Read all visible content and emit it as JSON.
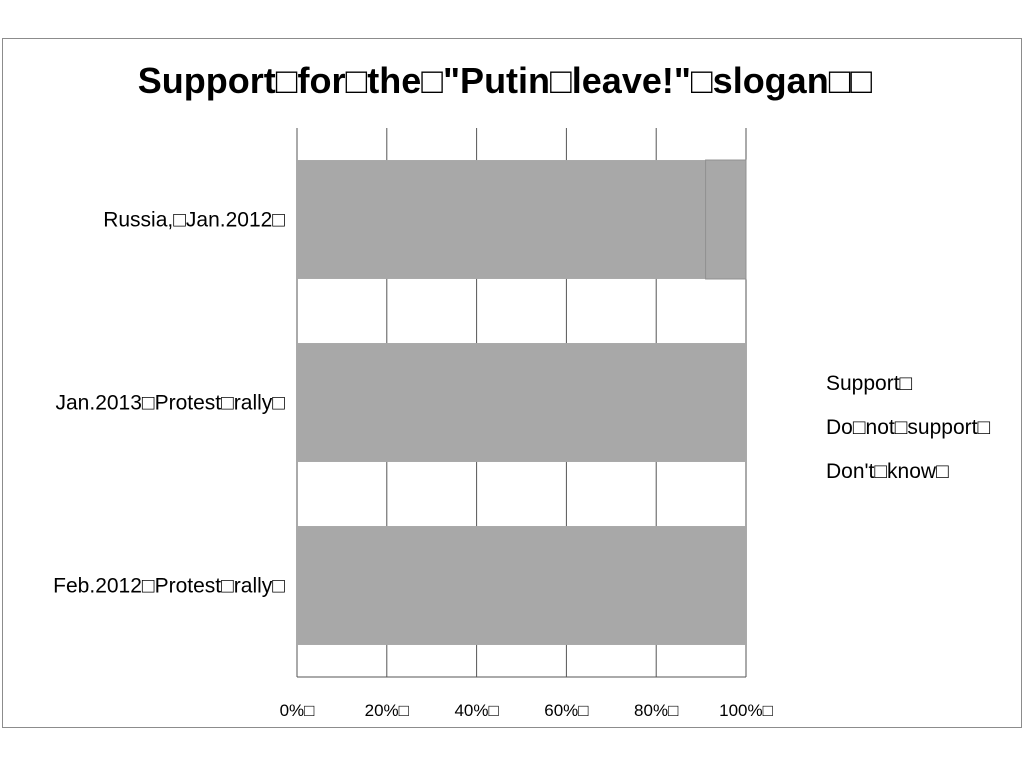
{
  "chart_data": {
    "type": "bar",
    "orientation": "horizontal",
    "stacked": true,
    "title": "Support□for□the□\"Putin□leave!\"□slogan□□",
    "categories": [
      "Russia,□Jan.2012□",
      "Jan.2013□Protest□rally□",
      "Feb.2012□Protest□rally□"
    ],
    "series": [
      {
        "name": "Support□",
        "values": [
          91,
          100,
          100
        ]
      },
      {
        "name": "Do□not□support□",
        "values": [
          9,
          0,
          0
        ]
      },
      {
        "name": "Don't□know□",
        "values": [
          0,
          0,
          0
        ]
      }
    ],
    "x_ticks": [
      "0%□",
      "20%□",
      "40%□",
      "60%□",
      "80%□",
      "100%□"
    ],
    "xlim": [
      0,
      100
    ],
    "grid": true,
    "legend": "right",
    "colors": {
      "bar": "#a8a8a8",
      "grid": "#555555",
      "frame": "#8c8c8c"
    }
  }
}
